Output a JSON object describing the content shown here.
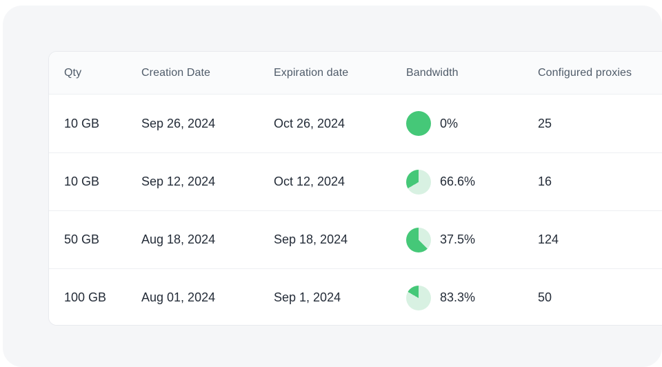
{
  "colors": {
    "accent_green": "#45c878",
    "accent_green_light": "#d8f1e2",
    "panel_bg": "#f5f6f8",
    "card_bg": "#ffffff",
    "header_text": "#4f5b69",
    "body_text": "#242c38",
    "divider": "#edeff2"
  },
  "table": {
    "columns": [
      "Qty",
      "Creation Date",
      "Expiration date",
      "Bandwidth",
      "Configured proxies"
    ],
    "rows": [
      {
        "qty": "10 GB",
        "creation_date": "Sep 26, 2024",
        "expiration_date": "Oct 26, 2024",
        "bandwidth_label": "0%",
        "bandwidth_pct": 0,
        "configured_proxies": "25"
      },
      {
        "qty": "10 GB",
        "creation_date": "Sep 12, 2024",
        "expiration_date": "Oct 12, 2024",
        "bandwidth_label": "66.6%",
        "bandwidth_pct": 66.6,
        "configured_proxies": "16"
      },
      {
        "qty": "50 GB",
        "creation_date": "Aug 18, 2024",
        "expiration_date": "Sep 18, 2024",
        "bandwidth_label": "37.5%",
        "bandwidth_pct": 37.5,
        "configured_proxies": "124"
      },
      {
        "qty": "100 GB",
        "creation_date": "Aug 01, 2024",
        "expiration_date": "Sep 1, 2024",
        "bandwidth_label": "83.3%",
        "bandwidth_pct": 83.3,
        "configured_proxies": "50"
      }
    ]
  }
}
